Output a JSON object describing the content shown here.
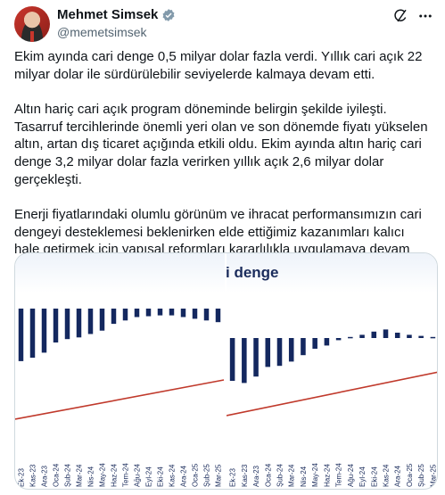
{
  "author": {
    "name": "Mehmet Simsek",
    "handle": "@memetsimsek"
  },
  "icons": {
    "verified": "verified-badge-icon",
    "grok": "grok-icon",
    "more": "more-icon"
  },
  "colors": {
    "verified": "#829aab",
    "bar": "#14285f",
    "trend": "#c0392b",
    "title": "#1b2c5c"
  },
  "tweet": {
    "paragraphs": [
      "Ekim ayında cari denge 0,5 milyar dolar fazla verdi. Yıllık cari açık 22 milyar dolar ile sürdürülebilir seviyelerde kalmaya devam etti.",
      "Altın hariç cari açık program döneminde belirgin şekilde iyileşti. Tasarruf tercihlerinde önemli yeri olan ve son dönemde fiyatı yükselen altın, artan dış ticaret açığında etkili oldu. Ekim ayında altın hariç cari denge 3,2 milyar dolar fazla verirken yıllık açık 2,6 milyar dolar gerçekleşti.",
      "Enerji fiyatlarındaki olumlu görünüm ve ihracat performansımızın cari dengeyi desteklemesi beklenirken elde ettiğimiz kazanımları kalıcı hale getirmek için yapısal reformları kararlılıkla uygulamaya devam edeceğiz."
    ]
  },
  "chart_data": [
    {
      "type": "bar",
      "title": "",
      "categories": [
        "Ek-23",
        "Kas-23",
        "Ara-23",
        "Oca-24",
        "Şub-24",
        "Mar-24",
        "Nis-24",
        "May-24",
        "Haz-24",
        "Tem-24",
        "Ağu-24",
        "Eyl-24",
        "Eki-24",
        "Kas-24",
        "Ara-24",
        "Oca-25",
        "Şub-25",
        "Mar-25"
      ],
      "values": [
        -62,
        -58,
        -52,
        -40,
        -36,
        -34,
        -30,
        -26,
        -18,
        -14,
        -10,
        -9,
        -8,
        -8,
        -10,
        -12,
        -14,
        -16
      ],
      "trend_line": true
    },
    {
      "type": "bar",
      "title": "i denge",
      "categories": [
        "Ek-23",
        "Kas-23",
        "Ara-23",
        "Oca-24",
        "Şub-24",
        "Mar-24",
        "Nis-24",
        "May-24",
        "Haz-24",
        "Tem-24",
        "Ağu-24",
        "Eyl-24",
        "Eki-24",
        "Kas-24",
        "Ara-24",
        "Oca-25",
        "Şub-25",
        "Mar-25"
      ],
      "values": [
        -40,
        -42,
        -36,
        -27,
        -26,
        -22,
        -16,
        -10,
        -7,
        -2,
        1,
        3,
        6,
        8,
        5,
        3,
        2,
        1
      ],
      "trend_line": true
    }
  ]
}
